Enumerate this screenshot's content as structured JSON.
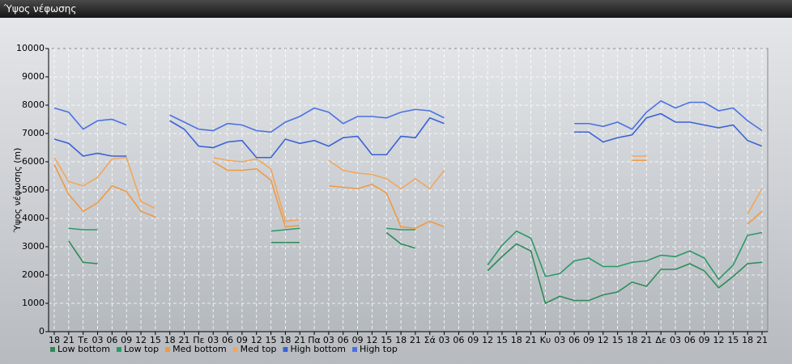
{
  "window_title": "Ύψος νέφωσης",
  "chart_data": {
    "type": "line",
    "y_label": "Ύψος νέφωσης (m)",
    "categories": [
      "18",
      "21",
      "Τε",
      "03",
      "06",
      "09",
      "12",
      "15",
      "18",
      "21",
      "Πε",
      "03",
      "06",
      "09",
      "12",
      "15",
      "18",
      "21",
      "Πα",
      "03",
      "06",
      "09",
      "12",
      "15",
      "18",
      "21",
      "Σά",
      "03",
      "06",
      "09",
      "12",
      "15",
      "18",
      "21",
      "Κυ",
      "03",
      "06",
      "09",
      "12",
      "15",
      "18",
      "21",
      "Δε",
      "03",
      "06",
      "09",
      "12",
      "15",
      "18",
      "21"
    ],
    "ylim": [
      0,
      10000
    ],
    "yticks": [
      0,
      1000,
      2000,
      3000,
      4000,
      5000,
      6000,
      7000,
      8000,
      9000,
      10000
    ],
    "grid": true,
    "legend": "bottom-left",
    "series": [
      {
        "name": "Low bottom",
        "color": "#2e8b57",
        "values": [
          null,
          3200,
          2450,
          2400,
          null,
          null,
          null,
          null,
          null,
          null,
          null,
          null,
          null,
          null,
          null,
          3150,
          3150,
          3150,
          null,
          null,
          null,
          null,
          null,
          3500,
          3100,
          2950,
          null,
          null,
          null,
          null,
          2150,
          2650,
          3100,
          2850,
          1000,
          1250,
          1100,
          1100,
          1300,
          1400,
          1750,
          1600,
          2200,
          2200,
          2400,
          2150,
          1550,
          1950,
          2400,
          2450
        ]
      },
      {
        "name": "Low top",
        "color": "#2a9a66",
        "values": [
          null,
          3650,
          3600,
          3600,
          null,
          null,
          null,
          null,
          null,
          null,
          null,
          null,
          null,
          null,
          null,
          3550,
          3600,
          3650,
          null,
          null,
          null,
          null,
          null,
          3650,
          3600,
          3600,
          null,
          null,
          null,
          null,
          2350,
          3050,
          3550,
          3300,
          1950,
          2050,
          2500,
          2600,
          2300,
          2300,
          2450,
          2500,
          2700,
          2650,
          2850,
          2600,
          1850,
          2350,
          3400,
          3500
        ]
      },
      {
        "name": "Med bottom",
        "color": "#ee9a45",
        "values": [
          5900,
          4850,
          4250,
          4550,
          5150,
          4950,
          4250,
          4050,
          null,
          null,
          null,
          6000,
          5700,
          5700,
          5750,
          5350,
          3700,
          3750,
          null,
          5150,
          5100,
          5050,
          5200,
          4900,
          3700,
          3650,
          3900,
          3700,
          null,
          null,
          null,
          null,
          null,
          null,
          null,
          null,
          null,
          null,
          null,
          null,
          6050,
          6050,
          null,
          null,
          null,
          null,
          null,
          null,
          3800,
          4250
        ]
      },
      {
        "name": "Med top",
        "color": "#f2a65a",
        "values": [
          6150,
          5300,
          5150,
          5450,
          6100,
          6150,
          4600,
          4350,
          null,
          null,
          null,
          6150,
          6050,
          6000,
          6100,
          5750,
          3900,
          3950,
          null,
          6050,
          5700,
          5600,
          5550,
          5400,
          5050,
          5400,
          5050,
          5700,
          null,
          null,
          null,
          null,
          null,
          null,
          null,
          null,
          null,
          null,
          null,
          null,
          6200,
          6200,
          null,
          null,
          null,
          null,
          null,
          null,
          4150,
          5050
        ]
      },
      {
        "name": "High bottom",
        "color": "#3a62d6",
        "values": [
          6800,
          6650,
          6200,
          6300,
          6200,
          6200,
          null,
          null,
          7450,
          7150,
          6550,
          6500,
          6700,
          6750,
          6150,
          6150,
          6800,
          6650,
          6750,
          6550,
          6850,
          6900,
          6250,
          6250,
          6900,
          6850,
          7550,
          7350,
          null,
          null,
          null,
          null,
          null,
          null,
          null,
          null,
          7050,
          7050,
          6700,
          6850,
          6950,
          7550,
          7700,
          7400,
          7400,
          7300,
          7200,
          7300,
          6750,
          6550
        ]
      },
      {
        "name": "High top",
        "color": "#4a72e2",
        "values": [
          7900,
          7750,
          7150,
          7450,
          7500,
          7300,
          null,
          null,
          7650,
          7400,
          7150,
          7100,
          7350,
          7300,
          7100,
          7050,
          7400,
          7600,
          7900,
          7750,
          7350,
          7600,
          7600,
          7550,
          7750,
          7850,
          7800,
          7550,
          null,
          null,
          null,
          null,
          null,
          null,
          null,
          null,
          7350,
          7350,
          7250,
          7400,
          7150,
          7750,
          8150,
          7900,
          8100,
          8100,
          7800,
          7900,
          7450,
          7100
        ]
      }
    ]
  }
}
